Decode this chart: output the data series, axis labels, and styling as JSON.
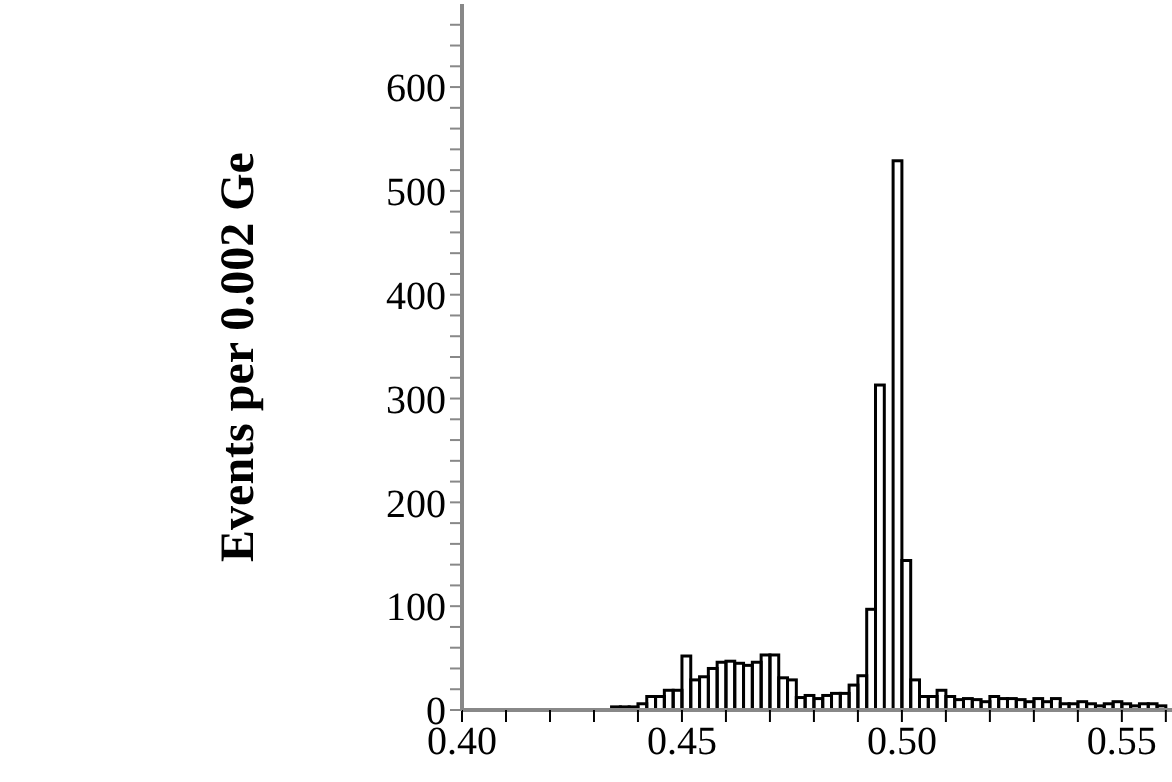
{
  "chart_data": {
    "type": "histogram",
    "ylabel": "Events per 0.002 Ge",
    "bins": [
      0.4,
      0.402,
      0.404,
      0.406,
      0.408,
      0.41,
      0.412,
      0.414,
      0.416,
      0.418,
      0.42,
      0.422,
      0.424,
      0.426,
      0.428,
      0.43,
      0.432,
      0.434,
      0.436,
      0.438,
      0.44,
      0.442,
      0.444,
      0.446,
      0.448,
      0.45,
      0.452,
      0.454,
      0.456,
      0.458,
      0.46,
      0.462,
      0.464,
      0.466,
      0.468,
      0.47,
      0.472,
      0.474,
      0.476,
      0.478,
      0.48,
      0.482,
      0.484,
      0.486,
      0.488,
      0.49,
      0.492,
      0.494,
      0.496,
      0.498,
      0.5,
      0.502,
      0.504,
      0.506,
      0.508,
      0.51,
      0.512,
      0.514,
      0.516,
      0.518,
      0.52,
      0.522,
      0.524,
      0.526,
      0.528,
      0.53,
      0.532,
      0.534,
      0.536,
      0.538,
      0.54,
      0.542,
      0.544,
      0.546,
      0.548,
      0.55,
      0.552,
      0.554,
      0.556,
      0.558,
      0.56
    ],
    "values": [
      0,
      0,
      0,
      0,
      0,
      0,
      0,
      0,
      0,
      0,
      0,
      0,
      0,
      0,
      0,
      0,
      0,
      3,
      3,
      3,
      6,
      13,
      13,
      19,
      19,
      52,
      29,
      32,
      40,
      46,
      47,
      45,
      43,
      46,
      53,
      53,
      31,
      29,
      12,
      14,
      11,
      14,
      16,
      16,
      24,
      33,
      97,
      313,
      null,
      529,
      144,
      29,
      13,
      13,
      19,
      13,
      10,
      11,
      10,
      8,
      13,
      11,
      11,
      10,
      8,
      11,
      8,
      11,
      6,
      6,
      8,
      6,
      4,
      6,
      8,
      6,
      4,
      6,
      6,
      4
    ],
    "color": "#000000",
    "xlim": [
      0.4,
      0.5614
    ],
    "ylim": [
      0,
      680
    ],
    "xticks": [
      {
        "value": 0.4,
        "label": "0.40"
      },
      {
        "value": 0.41,
        "label": null
      },
      {
        "value": 0.42,
        "label": null
      },
      {
        "value": 0.43,
        "label": null
      },
      {
        "value": 0.44,
        "label": null
      },
      {
        "value": 0.45,
        "label": "0.45"
      },
      {
        "value": 0.46,
        "label": null
      },
      {
        "value": 0.47,
        "label": null
      },
      {
        "value": 0.48,
        "label": null
      },
      {
        "value": 0.49,
        "label": null
      },
      {
        "value": 0.5,
        "label": "0.50"
      },
      {
        "value": 0.51,
        "label": null
      },
      {
        "value": 0.52,
        "label": null
      },
      {
        "value": 0.53,
        "label": null
      },
      {
        "value": 0.54,
        "label": null
      },
      {
        "value": 0.55,
        "label": "0.55"
      },
      {
        "value": 0.56,
        "label": null
      }
    ],
    "yticks": [
      0,
      {
        "value": 20,
        "label": null
      },
      {
        "value": 40,
        "label": null
      },
      {
        "value": 60,
        "label": null
      },
      {
        "value": 80,
        "label": null
      },
      100,
      {
        "value": 120,
        "label": null
      },
      {
        "value": 140,
        "label": null
      },
      {
        "value": 160,
        "label": null
      },
      {
        "value": 180,
        "label": null
      },
      200,
      {
        "value": 220,
        "label": null
      },
      {
        "value": 240,
        "label": null
      },
      {
        "value": 260,
        "label": null
      },
      {
        "value": 280,
        "label": null
      },
      300,
      {
        "value": 320,
        "label": null
      },
      {
        "value": 340,
        "label": null
      },
      {
        "value": 360,
        "label": null
      },
      {
        "value": 380,
        "label": null
      },
      400,
      {
        "value": 420,
        "label": null
      },
      {
        "value": 440,
        "label": null
      },
      {
        "value": 460,
        "label": null
      },
      {
        "value": 480,
        "label": null
      },
      500,
      {
        "value": 520,
        "label": null
      },
      {
        "value": 540,
        "label": null
      },
      {
        "value": 560,
        "label": null
      },
      {
        "value": 580,
        "label": null
      },
      600,
      {
        "value": 620,
        "label": null
      },
      {
        "value": 640,
        "label": null
      },
      {
        "value": 660,
        "label": null
      }
    ]
  }
}
